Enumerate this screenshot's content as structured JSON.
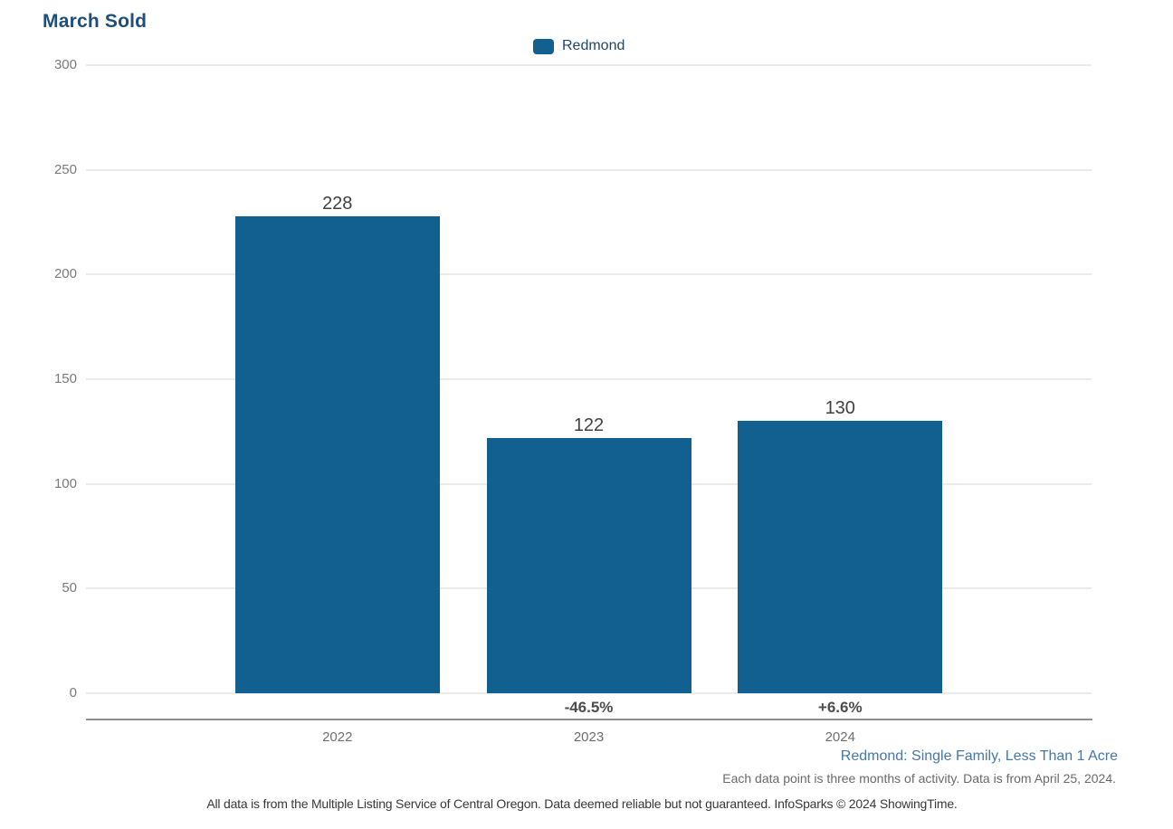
{
  "chart_data": {
    "type": "bar",
    "title": "March Sold",
    "categories": [
      "2022",
      "2023",
      "2024"
    ],
    "series": [
      {
        "name": "Redmond",
        "values": [
          228,
          122,
          130
        ]
      }
    ],
    "value_labels": [
      "228",
      "122",
      "130"
    ],
    "change_labels": [
      "",
      "-46.5%",
      "+6.6%"
    ],
    "ylim": [
      0,
      300
    ],
    "yticks": [
      0,
      50,
      100,
      150,
      200,
      250,
      300
    ],
    "grid": true,
    "legend_position": "top-center",
    "bar_color": "#116090",
    "title_color": "#1F4E79"
  },
  "footer": {
    "series_caption": "Redmond: Single Family, Less Than 1 Acre",
    "data_note": "Each data point is three months of activity. Data is from April 25, 2024.",
    "disclaimer": "All data is from the Multiple Listing Service of Central Oregon. Data deemed reliable but not guaranteed. InfoSparks © 2024 ShowingTime."
  }
}
